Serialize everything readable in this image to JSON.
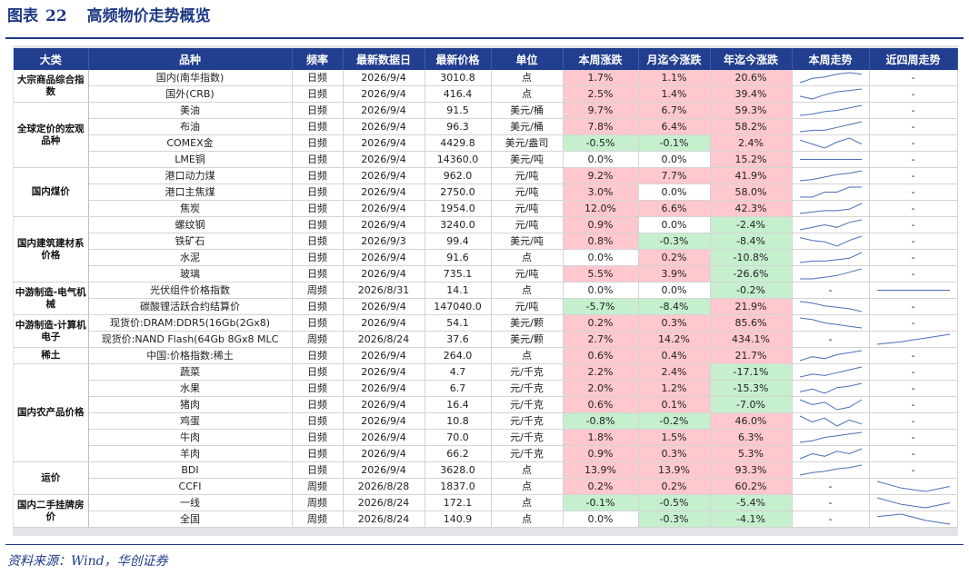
{
  "title": {
    "label": "图表",
    "number": "22",
    "text": "高频物价走势概览"
  },
  "headers": [
    "大类",
    "品种",
    "频率",
    "最新数据日",
    "最新价格",
    "单位",
    "本周涨跌",
    "月迄今涨跌",
    "年迄今涨跌",
    "本周走势",
    "近四周走势"
  ],
  "categories": [
    {
      "label": "大宗商品综合指数",
      "rows": 2
    },
    {
      "label": "全球定价的宏观品种",
      "rows": 4
    },
    {
      "label": "国内煤价",
      "rows": 3
    },
    {
      "label": "国内建筑建材系价格",
      "rows": 4
    },
    {
      "label": "中游制造-电气机械",
      "rows": 2
    },
    {
      "label": "中游制造-计算机电子",
      "rows": 2
    },
    {
      "label": "稀土",
      "rows": 1
    },
    {
      "label": "国内农产品价格",
      "rows": 6
    },
    {
      "label": "运价",
      "rows": 2
    },
    {
      "label": "国内二手挂牌房价",
      "rows": 2
    }
  ],
  "rows": [
    {
      "name": "国内(南华指数)",
      "freq": "日频",
      "date": "2026/9/4",
      "price": "3010.8",
      "unit": "点",
      "week": "1.7%",
      "month": "1.1%",
      "ytd": "20.6%",
      "wk_trend": [
        3,
        6,
        7,
        9,
        10,
        9
      ],
      "w4_trend": "-"
    },
    {
      "name": "国外(CRB)",
      "freq": "日频",
      "date": "2026/9/4",
      "price": "416.4",
      "unit": "点",
      "week": "2.5%",
      "month": "1.4%",
      "ytd": "39.4%",
      "wk_trend": [
        5,
        3,
        6,
        8,
        9,
        10
      ],
      "w4_trend": "-"
    },
    {
      "name": "美油",
      "freq": "日频",
      "date": "2026/9/4",
      "price": "91.5",
      "unit": "美元/桶",
      "week": "9.7%",
      "month": "6.7%",
      "ytd": "59.3%",
      "wk_trend": [
        2,
        3,
        5,
        6,
        8,
        10
      ],
      "w4_trend": "-"
    },
    {
      "name": "布油",
      "freq": "日频",
      "date": "2026/9/4",
      "price": "96.3",
      "unit": "美元/桶",
      "week": "7.8%",
      "month": "6.4%",
      "ytd": "58.2%",
      "wk_trend": [
        3,
        4,
        4,
        6,
        8,
        10
      ],
      "w4_trend": "-"
    },
    {
      "name": "COMEX金",
      "freq": "日频",
      "date": "2026/9/4",
      "price": "4429.8",
      "unit": "美元/盎司",
      "week": "-0.5%",
      "month": "-0.1%",
      "ytd": "2.4%",
      "wk_trend": [
        6,
        4,
        2,
        5,
        7,
        4
      ],
      "w4_trend": "-"
    },
    {
      "name": "LME铜",
      "freq": "日频",
      "date": "2026/9/4",
      "price": "14360.0",
      "unit": "美元/吨",
      "week": "0.0%",
      "month": "0.0%",
      "ytd": "15.2%",
      "wk_trend": [
        5,
        5,
        5,
        5,
        5,
        5
      ],
      "w4_trend": "-"
    },
    {
      "name": "港口动力煤",
      "freq": "日频",
      "date": "2026/9/4",
      "price": "962.0",
      "unit": "元/吨",
      "week": "9.2%",
      "month": "7.7%",
      "ytd": "41.9%",
      "wk_trend": [
        2,
        3,
        5,
        7,
        8,
        10
      ],
      "w4_trend": "-"
    },
    {
      "name": "港口主焦煤",
      "freq": "日频",
      "date": "2026/9/4",
      "price": "2750.0",
      "unit": "元/吨",
      "week": "3.0%",
      "month": "0.0%",
      "ytd": "58.0%",
      "wk_trend": [
        4,
        4,
        6,
        6,
        8,
        8
      ],
      "w4_trend": "-"
    },
    {
      "name": "焦炭",
      "freq": "日频",
      "date": "2026/9/4",
      "price": "1954.0",
      "unit": "元/吨",
      "week": "12.0%",
      "month": "6.6%",
      "ytd": "42.3%",
      "wk_trend": [
        3,
        4,
        5,
        5,
        6,
        10
      ],
      "w4_trend": "-"
    },
    {
      "name": "螺纹钢",
      "freq": "日频",
      "date": "2026/9/4",
      "price": "3240.0",
      "unit": "元/吨",
      "week": "0.9%",
      "month": "0.0%",
      "ytd": "-2.4%",
      "wk_trend": [
        4,
        5,
        6,
        5,
        7,
        8
      ],
      "w4_trend": "-"
    },
    {
      "name": "铁矿石",
      "freq": "日频",
      "date": "2026/9/3",
      "price": "99.4",
      "unit": "美元/吨",
      "week": "0.8%",
      "month": "-0.3%",
      "ytd": "-8.4%",
      "wk_trend": [
        8,
        6,
        5,
        2,
        6,
        9
      ],
      "w4_trend": "-"
    },
    {
      "name": "水泥",
      "freq": "日频",
      "date": "2026/9/4",
      "price": "91.6",
      "unit": "点",
      "week": "0.0%",
      "month": "0.2%",
      "ytd": "-10.8%",
      "wk_trend": [
        3,
        4,
        4,
        5,
        6,
        10
      ],
      "w4_trend": "-"
    },
    {
      "name": "玻璃",
      "freq": "日频",
      "date": "2026/9/4",
      "price": "735.1",
      "unit": "元/吨",
      "week": "5.5%",
      "month": "3.9%",
      "ytd": "-26.6%",
      "wk_trend": [
        3,
        3,
        4,
        5,
        7,
        9
      ],
      "w4_trend": "-"
    },
    {
      "name": "光伏组件价格指数",
      "freq": "周频",
      "date": "2026/8/31",
      "price": "14.1",
      "unit": "点",
      "week": "0.0%",
      "month": "0.0%",
      "ytd": "-0.2%",
      "wk_trend": "-",
      "w4_trend": [
        5,
        5,
        5,
        5
      ]
    },
    {
      "name": "碳酸锂活跃合约结算价",
      "freq": "日频",
      "date": "2026/9/4",
      "price": "147040.0",
      "unit": "元/吨",
      "week": "-5.7%",
      "month": "-8.4%",
      "ytd": "21.9%",
      "wk_trend": [
        9,
        8,
        6,
        5,
        4,
        2
      ],
      "w4_trend": "-"
    },
    {
      "name": "现货价:DRAM:DDR5(16Gb(2Gx8)",
      "freq": "日频",
      "date": "2026/9/4",
      "price": "54.1",
      "unit": "美元/颗",
      "week": "0.2%",
      "month": "0.3%",
      "ytd": "85.6%",
      "wk_trend": [
        9,
        8,
        6,
        5,
        4,
        3
      ],
      "w4_trend": "-"
    },
    {
      "name": "现货价:NAND Flash(64Gb 8Gx8 MLC",
      "freq": "周频",
      "date": "2026/8/24",
      "price": "37.6",
      "unit": "美元/颗",
      "week": "2.7%",
      "month": "14.2%",
      "ytd": "434.1%",
      "wk_trend": "-",
      "w4_trend": [
        2,
        4,
        7,
        10
      ]
    },
    {
      "name": "中国:价格指数:稀土",
      "freq": "日频",
      "date": "2026/9/4",
      "price": "264.0",
      "unit": "点",
      "week": "0.6%",
      "month": "0.4%",
      "ytd": "21.7%",
      "wk_trend": [
        4,
        6,
        5,
        7,
        8,
        9
      ],
      "w4_trend": "-"
    },
    {
      "name": "蔬菜",
      "freq": "日频",
      "date": "2026/9/4",
      "price": "4.7",
      "unit": "元/千克",
      "week": "2.2%",
      "month": "2.4%",
      "ytd": "-17.1%",
      "wk_trend": [
        3,
        5,
        4,
        6,
        8,
        10
      ],
      "w4_trend": "-"
    },
    {
      "name": "水果",
      "freq": "日频",
      "date": "2026/9/4",
      "price": "6.7",
      "unit": "元/千克",
      "week": "2.0%",
      "month": "1.2%",
      "ytd": "-15.3%",
      "wk_trend": [
        4,
        6,
        3,
        7,
        8,
        10
      ],
      "w4_trend": "-"
    },
    {
      "name": "猪肉",
      "freq": "日频",
      "date": "2026/9/4",
      "price": "16.4",
      "unit": "元/千克",
      "week": "0.6%",
      "month": "0.1%",
      "ytd": "-7.0%",
      "wk_trend": [
        8,
        6,
        7,
        4,
        5,
        8
      ],
      "w4_trend": "-"
    },
    {
      "name": "鸡蛋",
      "freq": "日频",
      "date": "2026/9/4",
      "price": "10.8",
      "unit": "元/千克",
      "week": "-0.8%",
      "month": "-0.2%",
      "ytd": "46.0%",
      "wk_trend": [
        8,
        5,
        7,
        3,
        6,
        4
      ],
      "w4_trend": "-"
    },
    {
      "name": "牛肉",
      "freq": "日频",
      "date": "2026/9/4",
      "price": "70.0",
      "unit": "元/千克",
      "week": "1.8%",
      "month": "1.5%",
      "ytd": "6.3%",
      "wk_trend": [
        3,
        4,
        6,
        7,
        8,
        9
      ],
      "w4_trend": "-"
    },
    {
      "name": "羊肉",
      "freq": "日频",
      "date": "2026/9/4",
      "price": "66.2",
      "unit": "元/千克",
      "week": "0.9%",
      "month": "0.3%",
      "ytd": "5.3%",
      "wk_trend": [
        4,
        6,
        5,
        7,
        6,
        8
      ],
      "w4_trend": "-"
    },
    {
      "name": "BDI",
      "freq": "日频",
      "date": "2026/9/4",
      "price": "3628.0",
      "unit": "点",
      "week": "13.9%",
      "month": "13.9%",
      "ytd": "93.3%",
      "wk_trend": [
        2,
        4,
        5,
        7,
        8,
        10
      ],
      "w4_trend": "-"
    },
    {
      "name": "CCFI",
      "freq": "周频",
      "date": "2026/8/28",
      "price": "1837.0",
      "unit": "点",
      "week": "0.2%",
      "month": "0.2%",
      "ytd": "60.2%",
      "wk_trend": "-",
      "w4_trend": [
        8,
        4,
        2,
        5
      ]
    },
    {
      "name": "一线",
      "freq": "周频",
      "date": "2026/8/24",
      "price": "172.1",
      "unit": "点",
      "week": "-0.1%",
      "month": "-0.5%",
      "ytd": "-5.4%",
      "wk_trend": "-",
      "w4_trend": [
        9,
        5,
        3,
        6
      ]
    },
    {
      "name": "全国",
      "freq": "周频",
      "date": "2026/8/24",
      "price": "140.9",
      "unit": "点",
      "week": "0.0%",
      "month": "-0.3%",
      "ytd": "-4.1%",
      "wk_trend": "-",
      "w4_trend": [
        8,
        10,
        5,
        2
      ]
    }
  ],
  "source": "资料来源：Wind，华创证券",
  "colors": {
    "header_bg": "#213e8f",
    "title": "#1f3a86",
    "up": "#ffc7ce",
    "down": "#c6efce",
    "sparkline": "#4a6fb5"
  }
}
